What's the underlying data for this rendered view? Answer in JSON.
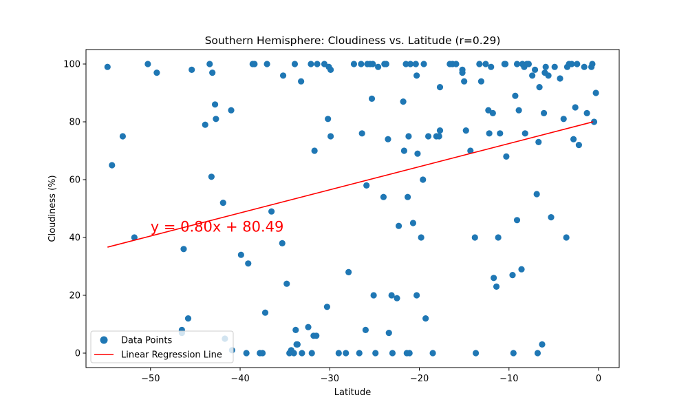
{
  "chart_data": {
    "type": "scatter",
    "title": "Southern Hemisphere: Cloudiness vs. Latitude (r=0.29)",
    "xlabel": "Latitude",
    "ylabel": "Cloudiness (%)",
    "xlim": [
      -57.2,
      2.3
    ],
    "ylim": [
      -5,
      105
    ],
    "xticks": [
      -50,
      -40,
      -30,
      -20,
      -10,
      0
    ],
    "yticks": [
      0,
      20,
      40,
      60,
      80,
      100
    ],
    "grid": false,
    "legend": {
      "placement": "lower-left",
      "entries": [
        "Data Points",
        "Linear Regression Line"
      ]
    },
    "colors": {
      "points": "#1f77b4",
      "regression": "#ff0000"
    },
    "regression": {
      "slope": 0.8,
      "intercept": 80.49,
      "x_range": [
        -54.8,
        -0.6
      ],
      "equation": "y = 0.80x + 80.49",
      "equation_position": {
        "x": -50,
        "y": 42
      }
    },
    "series": [
      {
        "name": "Data Points",
        "points": [
          [
            -54.8,
            99
          ],
          [
            -54.3,
            65
          ],
          [
            -53.1,
            75
          ],
          [
            -51.8,
            40
          ],
          [
            -50.3,
            100
          ],
          [
            -49.3,
            97
          ],
          [
            -46.5,
            8
          ],
          [
            -46.5,
            7
          ],
          [
            -46.3,
            36
          ],
          [
            -45.8,
            12
          ],
          [
            -45.4,
            98
          ],
          [
            -43.9,
            79
          ],
          [
            -43.4,
            100
          ],
          [
            -43.2,
            61
          ],
          [
            -43.1,
            97
          ],
          [
            -42.8,
            86
          ],
          [
            -42.7,
            81
          ],
          [
            -41.9,
            52
          ],
          [
            -41.7,
            5
          ],
          [
            -41.0,
            84
          ],
          [
            -40.9,
            1
          ],
          [
            -39.9,
            34
          ],
          [
            -39.3,
            0
          ],
          [
            -39.1,
            31
          ],
          [
            -38.6,
            100
          ],
          [
            -38.4,
            100
          ],
          [
            -37.8,
            0
          ],
          [
            -37.5,
            0
          ],
          [
            -37.2,
            14
          ],
          [
            -37.0,
            100
          ],
          [
            -36.5,
            49
          ],
          [
            -35.3,
            38
          ],
          [
            -35.2,
            96
          ],
          [
            -34.8,
            24
          ],
          [
            -34.5,
            0
          ],
          [
            -34.3,
            1
          ],
          [
            -34.0,
            0
          ],
          [
            -33.9,
            100
          ],
          [
            -33.8,
            8
          ],
          [
            -33.7,
            3
          ],
          [
            -33.6,
            3
          ],
          [
            -33.2,
            94
          ],
          [
            -33.1,
            0
          ],
          [
            -32.4,
            9
          ],
          [
            -32.1,
            100
          ],
          [
            -32.0,
            0
          ],
          [
            -31.8,
            6
          ],
          [
            -31.7,
            70
          ],
          [
            -31.5,
            6
          ],
          [
            -31.4,
            100
          ],
          [
            -30.6,
            100
          ],
          [
            -30.3,
            16
          ],
          [
            -30.2,
            81
          ],
          [
            -30.1,
            99
          ],
          [
            -29.9,
            98
          ],
          [
            -29.9,
            75
          ],
          [
            -29.0,
            0
          ],
          [
            -28.2,
            0
          ],
          [
            -27.9,
            28
          ],
          [
            -27.3,
            100
          ],
          [
            -26.7,
            0
          ],
          [
            -26.5,
            100
          ],
          [
            -26.4,
            76
          ],
          [
            -26.0,
            8
          ],
          [
            -25.9,
            58
          ],
          [
            -25.8,
            100
          ],
          [
            -25.5,
            100
          ],
          [
            -25.3,
            88
          ],
          [
            -25.2,
            100
          ],
          [
            -25.1,
            20
          ],
          [
            -24.9,
            0
          ],
          [
            -24.6,
            99
          ],
          [
            -24.0,
            54
          ],
          [
            -23.9,
            100
          ],
          [
            -23.7,
            100
          ],
          [
            -23.5,
            74
          ],
          [
            -23.4,
            7
          ],
          [
            -23.1,
            20
          ],
          [
            -23.0,
            0
          ],
          [
            -22.5,
            19
          ],
          [
            -22.3,
            44
          ],
          [
            -21.8,
            87
          ],
          [
            -21.7,
            70
          ],
          [
            -21.5,
            100
          ],
          [
            -21.4,
            0
          ],
          [
            -21.3,
            54
          ],
          [
            -21.2,
            75
          ],
          [
            -21.1,
            0
          ],
          [
            -21.0,
            100
          ],
          [
            -20.7,
            45
          ],
          [
            -20.4,
            100
          ],
          [
            -20.3,
            96
          ],
          [
            -20.3,
            20
          ],
          [
            -20.2,
            69
          ],
          [
            -19.8,
            40
          ],
          [
            -19.6,
            60
          ],
          [
            -19.5,
            100
          ],
          [
            -19.3,
            12
          ],
          [
            -19.0,
            75
          ],
          [
            -18.5,
            0
          ],
          [
            -18.1,
            75
          ],
          [
            -17.8,
            75
          ],
          [
            -17.7,
            92
          ],
          [
            -17.7,
            77
          ],
          [
            -16.6,
            100
          ],
          [
            -16.3,
            100
          ],
          [
            -15.9,
            100
          ],
          [
            -15.2,
            98
          ],
          [
            -15.2,
            97
          ],
          [
            -15.0,
            94
          ],
          [
            -14.8,
            77
          ],
          [
            -14.3,
            70
          ],
          [
            -13.8,
            40
          ],
          [
            -13.7,
            0
          ],
          [
            -13.3,
            100
          ],
          [
            -13.1,
            94
          ],
          [
            -12.6,
            100
          ],
          [
            -12.3,
            84
          ],
          [
            -12.2,
            76
          ],
          [
            -12.0,
            99
          ],
          [
            -11.8,
            83
          ],
          [
            -11.7,
            26
          ],
          [
            -11.4,
            23
          ],
          [
            -11.2,
            40
          ],
          [
            -11.0,
            76
          ],
          [
            -10.5,
            100
          ],
          [
            -10.4,
            100
          ],
          [
            -10.3,
            68
          ],
          [
            -9.6,
            27
          ],
          [
            -9.5,
            0
          ],
          [
            -9.3,
            89
          ],
          [
            -9.1,
            100
          ],
          [
            -9.1,
            46
          ],
          [
            -8.9,
            84
          ],
          [
            -8.6,
            29
          ],
          [
            -8.5,
            100
          ],
          [
            -8.3,
            99
          ],
          [
            -8.2,
            76
          ],
          [
            -8.0,
            100
          ],
          [
            -7.8,
            100
          ],
          [
            -7.4,
            96
          ],
          [
            -7.1,
            98
          ],
          [
            -6.9,
            55
          ],
          [
            -6.8,
            0
          ],
          [
            -6.7,
            73
          ],
          [
            -6.6,
            92
          ],
          [
            -6.3,
            3
          ],
          [
            -6.1,
            83
          ],
          [
            -6.0,
            97
          ],
          [
            -5.9,
            99
          ],
          [
            -5.6,
            96
          ],
          [
            -5.3,
            47
          ],
          [
            -4.9,
            99
          ],
          [
            -4.3,
            95
          ],
          [
            -3.9,
            81
          ],
          [
            -3.6,
            40
          ],
          [
            -3.5,
            99
          ],
          [
            -3.3,
            100
          ],
          [
            -3.0,
            100
          ],
          [
            -2.8,
            74
          ],
          [
            -2.6,
            85
          ],
          [
            -2.4,
            100
          ],
          [
            -2.2,
            72
          ],
          [
            -1.6,
            99
          ],
          [
            -1.3,
            83
          ],
          [
            -0.8,
            99
          ],
          [
            -0.7,
            100
          ],
          [
            -0.5,
            80
          ],
          [
            -0.3,
            90
          ]
        ]
      }
    ]
  }
}
